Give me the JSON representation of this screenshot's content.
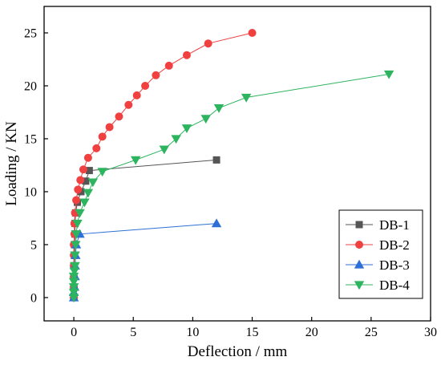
{
  "chart_data": {
    "type": "scatter",
    "xlabel": "Deflection / mm",
    "ylabel": "Loading / KN",
    "xlim": [
      -2.5,
      30
    ],
    "ylim": [
      -2.2,
      27.5
    ],
    "xticks": [
      0,
      5,
      10,
      15,
      20,
      25,
      30
    ],
    "yticks": [
      0,
      5,
      10,
      15,
      20,
      25
    ],
    "grid": false,
    "legend_position": "bottom-right",
    "series": [
      {
        "name": "DB-1",
        "marker": "square",
        "color": "#555555",
        "points": [
          [
            0.0,
            0.0
          ],
          [
            0.0,
            1.0
          ],
          [
            0.0,
            2.0
          ],
          [
            0.0,
            3.0
          ],
          [
            0.05,
            4.0
          ],
          [
            0.05,
            5.0
          ],
          [
            0.1,
            6.0
          ],
          [
            0.1,
            7.0
          ],
          [
            0.15,
            8.0
          ],
          [
            0.3,
            9.0
          ],
          [
            0.6,
            10.0
          ],
          [
            1.0,
            11.0
          ],
          [
            1.3,
            12.0
          ],
          [
            12.0,
            13.0
          ]
        ]
      },
      {
        "name": "DB-2",
        "marker": "circle",
        "color": "#f04040",
        "points": [
          [
            0.0,
            0.0
          ],
          [
            0.0,
            1.0
          ],
          [
            0.0,
            2.0
          ],
          [
            0.0,
            3.0
          ],
          [
            0.0,
            4.0
          ],
          [
            0.0,
            5.0
          ],
          [
            0.05,
            6.0
          ],
          [
            0.05,
            7.0
          ],
          [
            0.1,
            8.0
          ],
          [
            0.2,
            9.2
          ],
          [
            0.35,
            10.2
          ],
          [
            0.55,
            11.1
          ],
          [
            0.8,
            12.1
          ],
          [
            1.2,
            13.2
          ],
          [
            1.9,
            14.1
          ],
          [
            2.4,
            15.2
          ],
          [
            3.0,
            16.1
          ],
          [
            3.8,
            17.1
          ],
          [
            4.6,
            18.2
          ],
          [
            5.3,
            19.1
          ],
          [
            6.0,
            20.0
          ],
          [
            6.9,
            21.0
          ],
          [
            8.0,
            21.9
          ],
          [
            9.5,
            22.9
          ],
          [
            11.3,
            24.0
          ],
          [
            15.0,
            25.0
          ]
        ]
      },
      {
        "name": "DB-3",
        "marker": "triangle-up",
        "color": "#2d6fd6",
        "points": [
          [
            0.0,
            0.0
          ],
          [
            0.0,
            0.5
          ],
          [
            0.05,
            1.0
          ],
          [
            0.1,
            2.0
          ],
          [
            0.1,
            3.0
          ],
          [
            0.15,
            4.0
          ],
          [
            0.2,
            5.0
          ],
          [
            0.5,
            6.0
          ],
          [
            12.0,
            7.0
          ]
        ]
      },
      {
        "name": "DB-4",
        "marker": "triangle-down",
        "color": "#2db45e",
        "points": [
          [
            0.0,
            0.0
          ],
          [
            0.0,
            0.5
          ],
          [
            0.0,
            1.0
          ],
          [
            0.0,
            1.5
          ],
          [
            0.0,
            2.0
          ],
          [
            0.05,
            2.5
          ],
          [
            0.1,
            3.0
          ],
          [
            0.1,
            4.0
          ],
          [
            0.15,
            5.0
          ],
          [
            0.2,
            6.0
          ],
          [
            0.3,
            7.0
          ],
          [
            0.5,
            8.0
          ],
          [
            0.9,
            9.0
          ],
          [
            1.2,
            9.9
          ],
          [
            1.6,
            10.9
          ],
          [
            2.4,
            11.9
          ],
          [
            5.2,
            13.0
          ],
          [
            7.6,
            14.0
          ],
          [
            8.6,
            15.0
          ],
          [
            9.5,
            16.0
          ],
          [
            11.1,
            16.9
          ],
          [
            12.2,
            17.9
          ],
          [
            14.5,
            18.9
          ],
          [
            26.5,
            21.1
          ]
        ]
      }
    ]
  }
}
